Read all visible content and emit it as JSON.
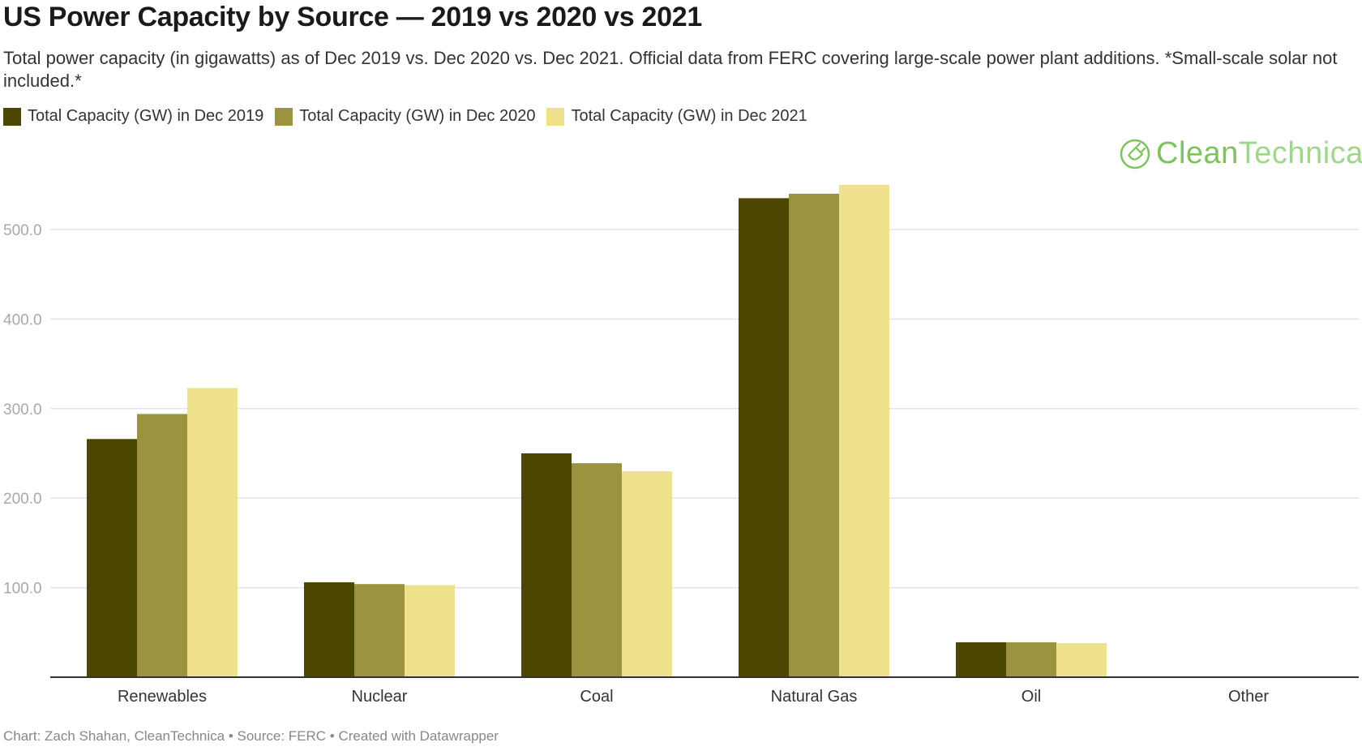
{
  "title": "US Power Capacity by Source — 2019 vs 2020 vs 2021",
  "subtitle": "Total power capacity (in gigawatts) as of Dec 2019 vs. Dec 2020 vs. Dec 2021. Official data from FERC covering large-scale power plant additions. *Small-scale solar not included.*",
  "logo": {
    "part1": "Clean",
    "part2": "Technica",
    "icon": "cleantechnica-plug-icon"
  },
  "footer": "Chart: Zach Shahan, CleanTechnica • Source: FERC • Created with Datawrapper",
  "colors": {
    "series_2019": "#4b4700",
    "series_2020": "#9b9340",
    "series_2021": "#f0e18d",
    "grid": "#e3e3e3",
    "axis": "#333333",
    "tick_label": "#a8a8a8"
  },
  "chart_data": {
    "type": "bar",
    "categories": [
      "Renewables",
      "Nuclear",
      "Coal",
      "Natural Gas",
      "Oil",
      "Other"
    ],
    "series": [
      {
        "name": "Total Capacity (GW) in Dec 2019",
        "values": [
          266,
          106,
          250,
          535,
          39,
          0
        ]
      },
      {
        "name": "Total Capacity (GW) in Dec 2020",
        "values": [
          294,
          104,
          239,
          540,
          39,
          0
        ]
      },
      {
        "name": "Total Capacity (GW) in Dec 2021",
        "values": [
          323,
          103,
          230,
          550,
          38,
          0
        ]
      }
    ],
    "ylim": [
      0,
      550
    ],
    "yticks": [
      100,
      200,
      300,
      400,
      500
    ],
    "ytick_labels": [
      "100.0",
      "200.0",
      "300.0",
      "400.0",
      "500.0"
    ],
    "grid": true,
    "legend_position": "top-left"
  }
}
